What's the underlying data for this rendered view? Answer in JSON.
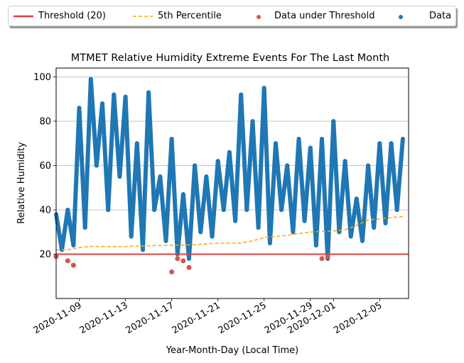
{
  "chart_data": {
    "type": "scatter",
    "title": "MTMET Relative Humidity Extreme Events For The Last Month",
    "xlabel": "Year-Month-Day (Local Time)",
    "ylabel": "Relative Humidity",
    "xlim": [
      "2020-11-07",
      "2020-12-07"
    ],
    "ylim": [
      0,
      104
    ],
    "yticks": [
      20,
      40,
      60,
      80,
      100
    ],
    "xticks": [
      "2020-11-09",
      "2020-11-13",
      "2020-11-17",
      "2020-11-21",
      "2020-11-25",
      "2020-11-29",
      "2020-12-01",
      "2020-12-05"
    ],
    "grid": "y",
    "legend_position": "top",
    "colors": {
      "data": "#1f77b4",
      "under": "#d9534f",
      "threshold": "#e0403f",
      "percentile": "#ffa500"
    },
    "threshold": {
      "name": "Threshold (20)",
      "value": 20
    },
    "percentile": {
      "name": "5th Percentile",
      "x": [
        "2020-11-07",
        "2020-11-08",
        "2020-11-09",
        "2020-11-10",
        "2020-11-13",
        "2020-11-15",
        "2020-11-17",
        "2020-11-19",
        "2020-11-21",
        "2020-11-23",
        "2020-11-24",
        "2020-11-25",
        "2020-11-27",
        "2020-11-29",
        "2020-12-01",
        "2020-12-02",
        "2020-12-03",
        "2020-12-04",
        "2020-12-07"
      ],
      "y": [
        22,
        22,
        23,
        23.5,
        23.5,
        23.8,
        24,
        24.3,
        25,
        25,
        26,
        27.5,
        28.5,
        30,
        30.5,
        31,
        33,
        35.5,
        37
      ]
    },
    "data_series": {
      "name": "Data",
      "x": [
        "2020-11-07",
        "2020-11-07",
        "2020-11-08",
        "2020-11-08",
        "2020-11-09",
        "2020-11-09",
        "2020-11-10",
        "2020-11-10",
        "2020-11-11",
        "2020-11-11",
        "2020-11-12",
        "2020-11-12",
        "2020-11-13",
        "2020-11-13",
        "2020-11-14",
        "2020-11-14",
        "2020-11-15",
        "2020-11-15",
        "2020-11-16",
        "2020-11-16",
        "2020-11-17",
        "2020-11-17",
        "2020-11-18",
        "2020-11-18",
        "2020-11-19",
        "2020-11-19",
        "2020-11-20",
        "2020-11-20",
        "2020-11-21",
        "2020-11-21",
        "2020-11-22",
        "2020-11-22",
        "2020-11-23",
        "2020-11-23",
        "2020-11-24",
        "2020-11-24",
        "2020-11-25",
        "2020-11-25",
        "2020-11-26",
        "2020-11-26",
        "2020-11-27",
        "2020-11-27",
        "2020-11-28",
        "2020-11-28",
        "2020-11-29",
        "2020-11-29",
        "2020-11-30",
        "2020-11-30",
        "2020-12-01",
        "2020-12-01",
        "2020-12-02",
        "2020-12-02",
        "2020-12-03",
        "2020-12-03",
        "2020-12-04",
        "2020-12-04",
        "2020-12-05",
        "2020-12-05",
        "2020-12-06",
        "2020-12-06",
        "2020-12-07"
      ],
      "y": [
        38,
        22,
        40,
        24,
        86,
        32,
        99,
        60,
        88,
        40,
        92,
        55,
        91,
        28,
        70,
        22,
        93,
        40,
        55,
        26,
        72,
        20,
        47,
        18,
        60,
        30,
        55,
        28,
        62,
        40,
        66,
        35,
        92,
        40,
        80,
        32,
        95,
        25,
        70,
        40,
        60,
        30,
        72,
        35,
        68,
        24,
        72,
        18,
        80,
        30,
        62,
        28,
        45,
        26,
        60,
        32,
        70,
        34,
        70,
        40,
        72
      ]
    },
    "under_series": {
      "name": "Data under Threshold",
      "x": [
        "2020-11-07",
        "2020-11-08",
        "2020-11-08",
        "2020-11-17",
        "2020-11-17",
        "2020-11-18",
        "2020-11-18",
        "2020-11-30",
        "2020-11-30"
      ],
      "y": [
        19,
        15,
        17,
        18,
        12,
        14,
        17,
        19,
        18
      ]
    }
  }
}
